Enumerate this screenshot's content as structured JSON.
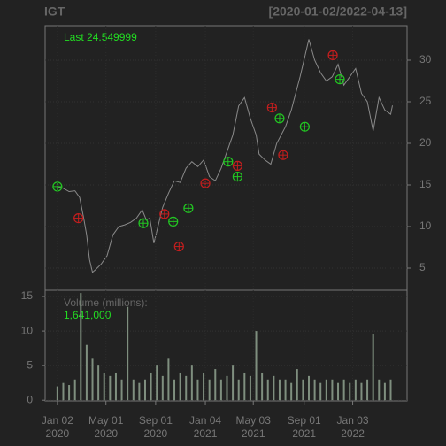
{
  "chart_data": [
    {
      "type": "line",
      "title": "IGT",
      "subtitle": "[2020-01-02/2022-04-13]",
      "annotation": "Last 24.549999",
      "color": "#8a8a8a",
      "x": [
        0,
        10,
        20,
        30,
        38,
        45,
        50,
        55,
        60,
        65,
        75,
        85,
        95,
        105,
        115,
        125,
        135,
        145,
        152,
        158,
        165,
        172,
        180,
        190,
        200,
        210,
        220,
        230,
        240,
        250,
        260,
        270,
        280,
        290,
        300,
        310,
        320,
        330,
        340,
        345,
        355,
        365,
        375,
        390,
        400,
        415,
        425,
        430,
        440,
        450,
        460,
        470,
        480,
        490,
        500,
        510,
        520,
        530,
        540,
        550,
        560,
        570,
        573
      ],
      "values": [
        14.8,
        14.6,
        14.2,
        14.3,
        13.5,
        11,
        9,
        6,
        4.5,
        4.8,
        5.5,
        6.5,
        9,
        10,
        10.2,
        10.5,
        11,
        12,
        10.8,
        11,
        8,
        10,
        12.3,
        14,
        15.5,
        15.3,
        17,
        17.8,
        17.2,
        18,
        16,
        15.5,
        17,
        19,
        21,
        24.5,
        25.5,
        23,
        21,
        18.7,
        18,
        17.5,
        20,
        22,
        24,
        28,
        31,
        32.5,
        30,
        28.5,
        27.5,
        28,
        29.5,
        27,
        28,
        29,
        26,
        25,
        21.5,
        25.5,
        24,
        23.5,
        24.55
      ],
      "markers": {
        "x": [
          0,
          36,
          147,
          183,
          198,
          208,
          224,
          253,
          292,
          308,
          308,
          367,
          380,
          386,
          423,
          471,
          483
        ],
        "values": [
          14.8,
          11,
          10.4,
          11.5,
          10.6,
          7.6,
          12.2,
          15.2,
          17.8,
          17.3,
          16,
          24.3,
          23,
          18.6,
          22,
          30.6,
          27.7
        ],
        "colors": [
          "#22c722",
          "#c41e1e",
          "#22c722",
          "#c41e1e",
          "#22c722",
          "#c41e1e",
          "#22c722",
          "#c41e1e",
          "#22c722",
          "#c41e1e",
          "#22c722",
          "#c41e1e",
          "#22c722",
          "#c41e1e",
          "#22c722",
          "#c41e1e",
          "#22c722"
        ]
      },
      "xlim": [
        -21,
        598
      ],
      "ylim": [
        2.34,
        34.15
      ],
      "yticks": [
        5,
        10,
        15,
        20,
        25,
        30
      ],
      "grid": true
    },
    {
      "type": "bar",
      "title": "Volume (millions):",
      "annotation": "1,641,000",
      "color": "#7f8f7f",
      "x": [
        0,
        10,
        20,
        30,
        40,
        50,
        60,
        70,
        80,
        90,
        100,
        110,
        120,
        130,
        140,
        150,
        160,
        170,
        180,
        190,
        200,
        210,
        220,
        230,
        240,
        250,
        260,
        270,
        280,
        290,
        300,
        310,
        320,
        330,
        340,
        350,
        360,
        370,
        380,
        390,
        400,
        410,
        420,
        430,
        440,
        450,
        460,
        470,
        480,
        490,
        500,
        510,
        520,
        530,
        540,
        550,
        560,
        570
      ],
      "values": [
        2,
        2.5,
        2.2,
        3,
        15.5,
        8,
        6,
        5,
        4,
        3.5,
        4,
        3,
        13.5,
        3,
        2.5,
        3,
        4,
        5,
        3.5,
        6,
        3,
        4,
        3.5,
        5,
        3,
        4,
        3,
        4.5,
        3,
        3.5,
        5,
        3,
        4,
        3.5,
        10,
        4,
        3,
        3.5,
        3,
        3,
        2.5,
        4.5,
        3,
        3.5,
        3,
        2.5,
        3,
        3,
        2.5,
        3,
        2.5,
        3,
        2.5,
        3,
        9.5,
        3,
        2.5,
        3
      ],
      "xlim": [
        -21,
        598
      ],
      "ylim": [
        -0.1,
        15.9
      ],
      "yticks": [
        0,
        5,
        10,
        15
      ],
      "xticks": [
        {
          "value": 0,
          "label": "Jan 02 2020"
        },
        {
          "value": 83,
          "label": "May 01 2020"
        },
        {
          "value": 168,
          "label": "Sep 01 2020"
        },
        {
          "value": 253,
          "label": "Jan 04 2021"
        },
        {
          "value": 335,
          "label": "May 03 2021"
        },
        {
          "value": 422,
          "label": "Sep 01 2021"
        },
        {
          "value": 505,
          "label": "Jan 03 2022"
        }
      ],
      "grid": true
    }
  ]
}
